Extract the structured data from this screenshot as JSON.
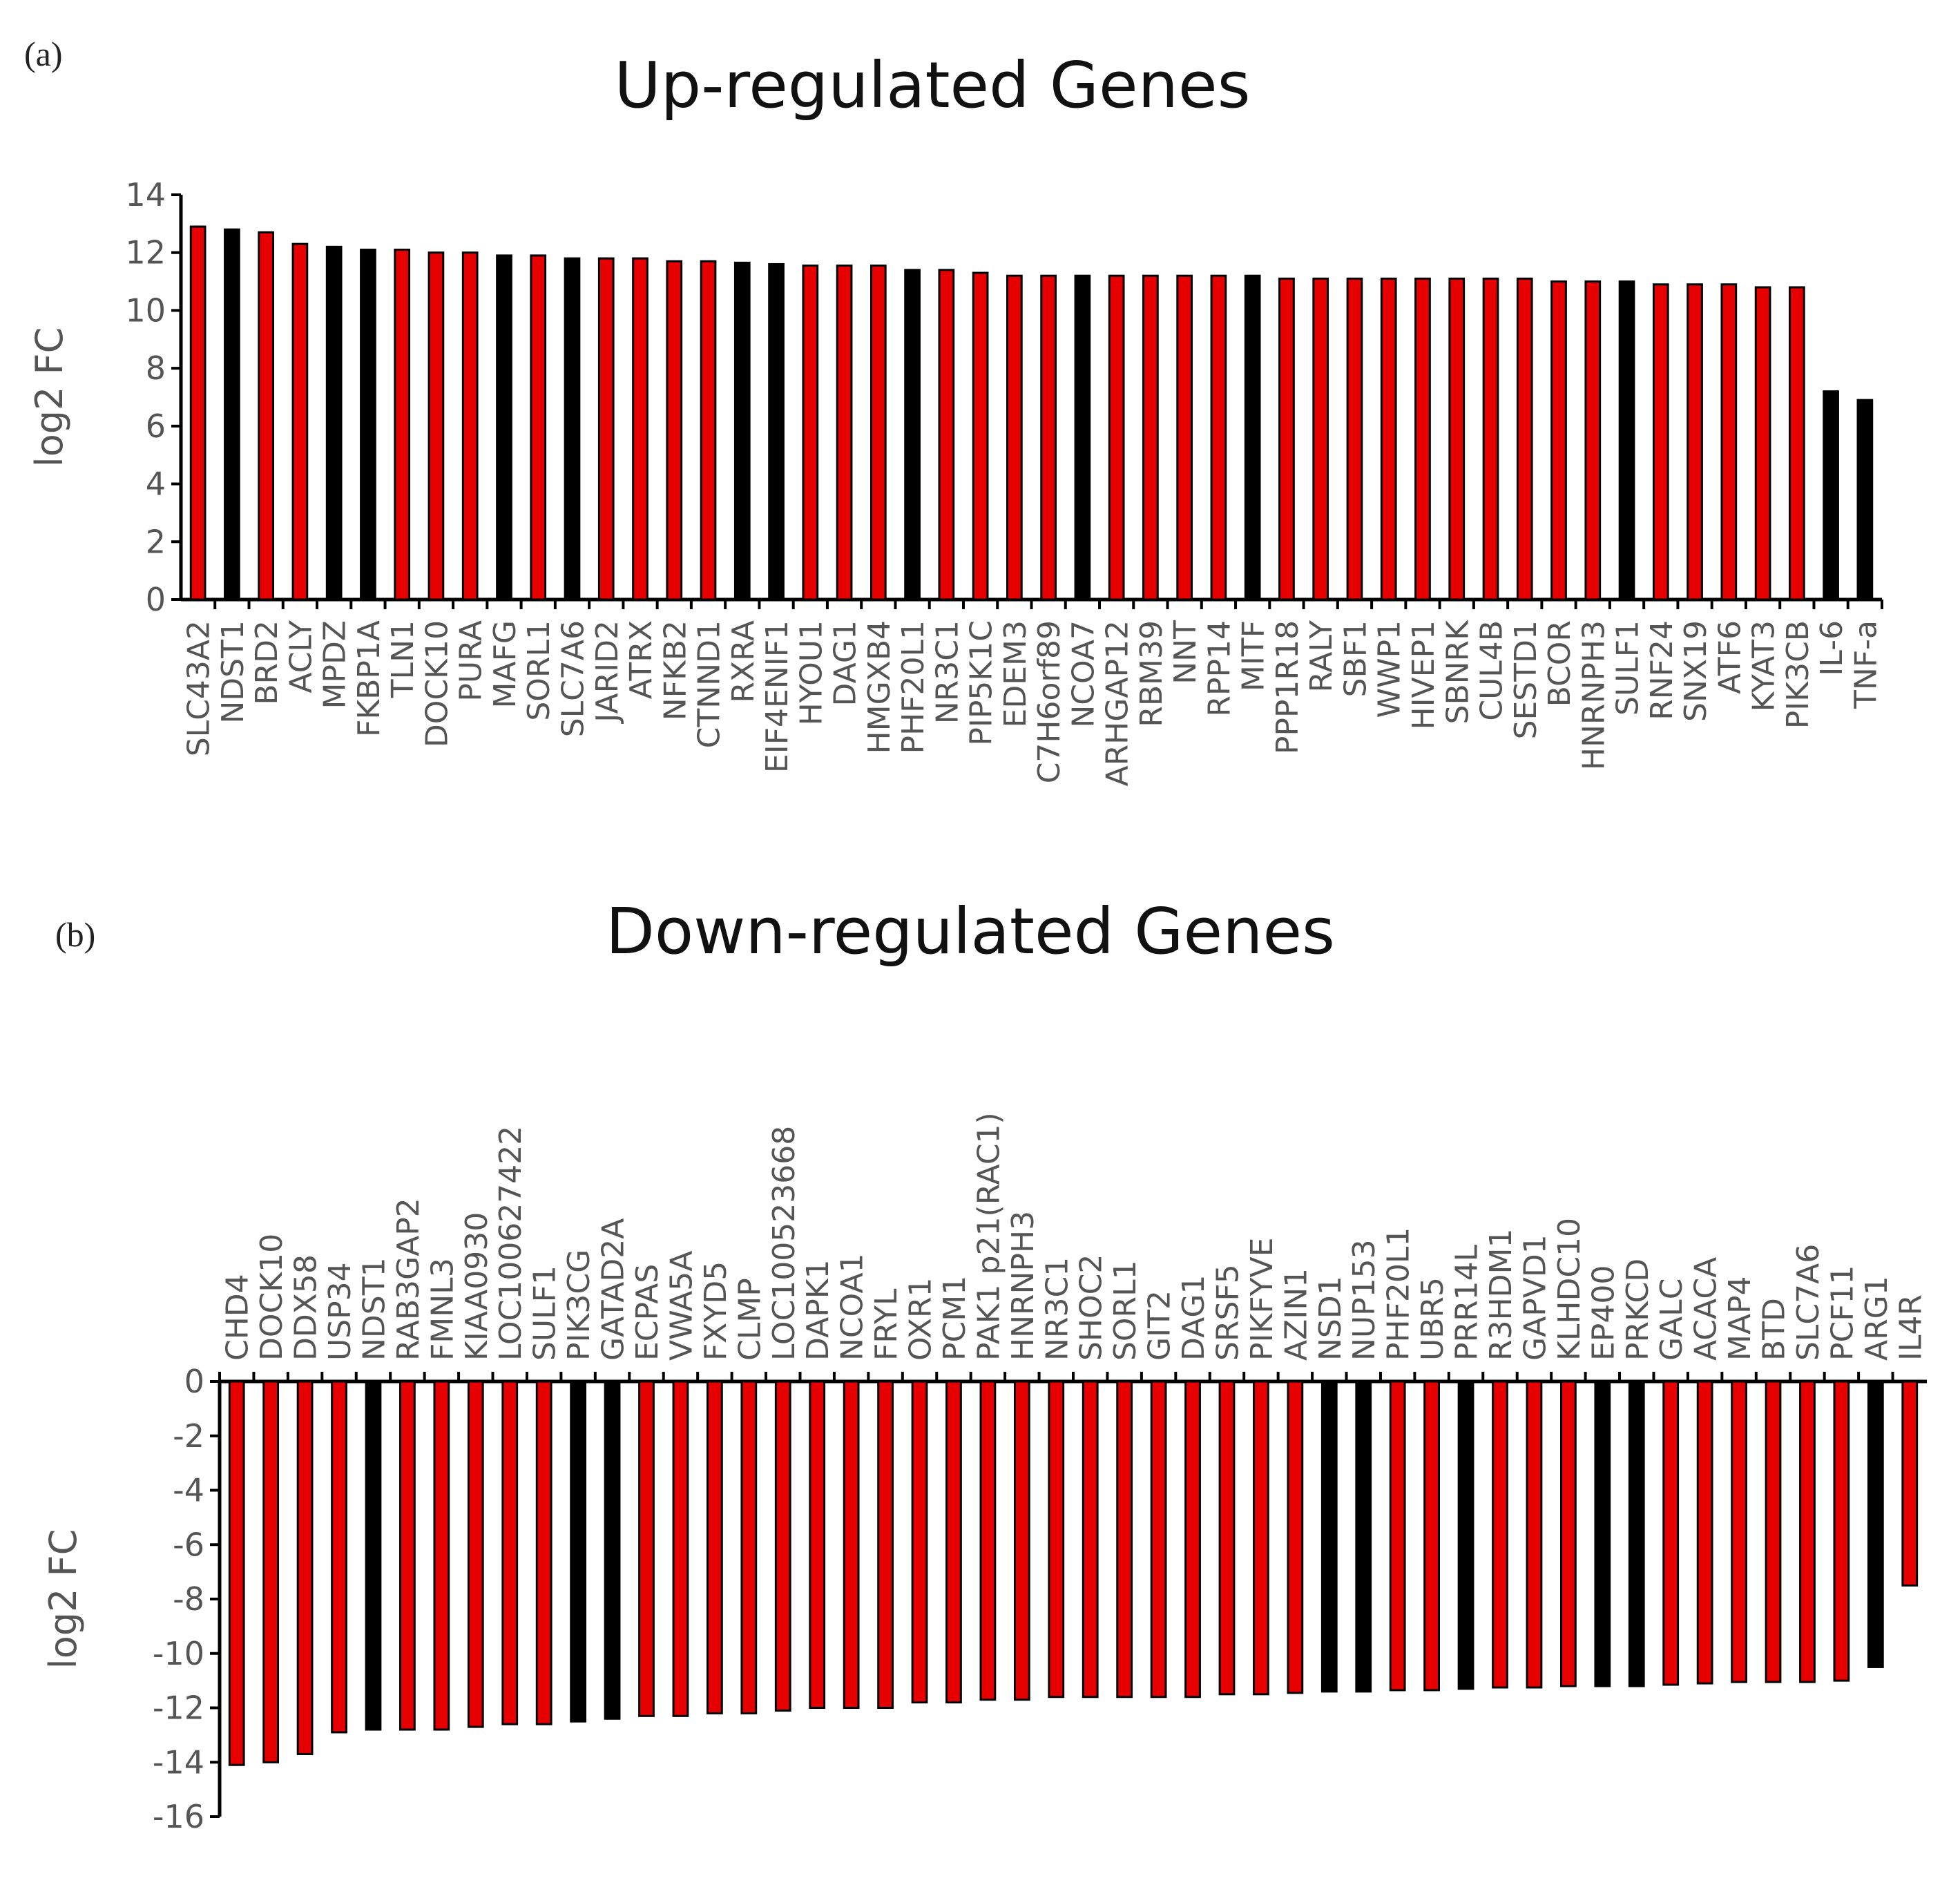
{
  "colors": {
    "red": "#e60000",
    "black": "#000000",
    "axis_text": "#555555"
  },
  "chart_data": [
    {
      "type": "bar",
      "panel_label": "(a)",
      "title": "Up-regulated Genes",
      "xlabel": "",
      "ylabel": "log2 FC",
      "ylim": [
        0,
        14
      ],
      "yticks": [
        0,
        2,
        4,
        6,
        8,
        10,
        12,
        14
      ],
      "categories": [
        "SLC43A2",
        "NDST1",
        "BRD2",
        "ACLY",
        "MPDZ",
        "FKBP1A",
        "TLN1",
        "DOCK10",
        "PURA",
        "MAFG",
        "SORL1",
        "SLC7A6",
        "JARID2",
        "ATRX",
        "NFKB2",
        "CTNND1",
        "RXRA",
        "EIF4ENIF1",
        "HYOU1",
        "DAG1",
        "HMGXB4",
        "PHF20L1",
        "NR3C1",
        "PIP5K1C",
        "EDEM3",
        "C7H6orf89",
        "NCOA7",
        "ARHGAP12",
        "RBM39",
        "NNT",
        "RPP14",
        "MITF",
        "PPP1R18",
        "RALY",
        "SBF1",
        "WWP1",
        "HIVEP1",
        "SBNRK",
        "CUL4B",
        "SESTD1",
        "BCOR",
        "HNRNPH3",
        "SULF1",
        "RNF24",
        "SNX19",
        "ATF6",
        "KYAT3",
        "PIK3CB",
        "IL-6",
        "TNF-a"
      ],
      "values": [
        12.9,
        12.8,
        12.7,
        12.3,
        12.2,
        12.1,
        12.1,
        12.0,
        12.0,
        11.9,
        11.9,
        11.8,
        11.8,
        11.8,
        11.7,
        11.7,
        11.65,
        11.6,
        11.55,
        11.55,
        11.55,
        11.4,
        11.4,
        11.3,
        11.2,
        11.2,
        11.2,
        11.2,
        11.2,
        11.2,
        11.2,
        11.2,
        11.1,
        11.1,
        11.1,
        11.1,
        11.1,
        11.1,
        11.1,
        11.1,
        11.0,
        11.0,
        11.0,
        10.9,
        10.9,
        10.9,
        10.8,
        10.8,
        7.2,
        6.9
      ],
      "bar_colors": [
        "red",
        "black",
        "red",
        "red",
        "black",
        "black",
        "red",
        "red",
        "red",
        "black",
        "red",
        "black",
        "red",
        "red",
        "red",
        "red",
        "black",
        "black",
        "red",
        "red",
        "red",
        "black",
        "red",
        "red",
        "red",
        "red",
        "black",
        "red",
        "red",
        "red",
        "red",
        "black",
        "red",
        "red",
        "red",
        "red",
        "red",
        "red",
        "red",
        "red",
        "red",
        "red",
        "black",
        "red",
        "red",
        "red",
        "red",
        "red",
        "black",
        "black"
      ]
    },
    {
      "type": "bar",
      "panel_label": "(b)",
      "title": "Down-regulated Genes",
      "xlabel": "",
      "ylabel": "log2 FC",
      "ylim": [
        -16,
        0
      ],
      "yticks": [
        0,
        -2,
        -4,
        -6,
        -8,
        -10,
        -12,
        -14,
        -16
      ],
      "categories": [
        "CHD4",
        "DOCK10",
        "DDX58",
        "USP34",
        "NDST1",
        "RAB3GAP2",
        "FMNL3",
        "KIAA0930",
        "LOC100627422",
        "SULF1",
        "PIK3CG",
        "GATAD2A",
        "ECPAS",
        "VWA5A",
        "FXYD5",
        "CLMP",
        "LOC100523668",
        "DAPK1",
        "NCOA1",
        "FRYL",
        "OXR1",
        "PCM1",
        "PAK1 p21(RAC1)",
        "HNRNPH3",
        "NR3C1",
        "SHOC2",
        "SORL1",
        "GIT2",
        "DAG1",
        "SRSF5",
        "PIKFYVE",
        "AZIN1",
        "NSD1",
        "NUP153",
        "PHF20L1",
        "UBR5",
        "PRR14L",
        "R3HDM1",
        "GAPVD1",
        "KLHDC10",
        "EP400",
        "PRKCD",
        "GALC",
        "ACACA",
        "MAP4",
        "BTD",
        "SLC7A6",
        "PCF11",
        "ARG1",
        "IL4R"
      ],
      "values": [
        -14.1,
        -14.0,
        -13.7,
        -12.9,
        -12.8,
        -12.8,
        -12.8,
        -12.7,
        -12.6,
        -12.6,
        -12.5,
        -12.4,
        -12.3,
        -12.3,
        -12.2,
        -12.2,
        -12.1,
        -12.0,
        -12.0,
        -12.0,
        -11.8,
        -11.8,
        -11.7,
        -11.7,
        -11.6,
        -11.6,
        -11.6,
        -11.6,
        -11.6,
        -11.5,
        -11.5,
        -11.45,
        -11.4,
        -11.4,
        -11.35,
        -11.35,
        -11.3,
        -11.25,
        -11.25,
        -11.2,
        -11.2,
        -11.2,
        -11.15,
        -11.1,
        -11.05,
        -11.05,
        -11.05,
        -11.0,
        -10.5,
        -7.5
      ],
      "bar_colors": [
        "red",
        "red",
        "red",
        "red",
        "black",
        "red",
        "red",
        "red",
        "red",
        "red",
        "black",
        "black",
        "red",
        "red",
        "red",
        "red",
        "red",
        "red",
        "red",
        "red",
        "red",
        "red",
        "red",
        "red",
        "red",
        "red",
        "red",
        "red",
        "red",
        "red",
        "red",
        "red",
        "black",
        "black",
        "red",
        "red",
        "black",
        "red",
        "red",
        "red",
        "black",
        "black",
        "red",
        "red",
        "red",
        "red",
        "red",
        "red",
        "black",
        "red"
      ]
    }
  ]
}
